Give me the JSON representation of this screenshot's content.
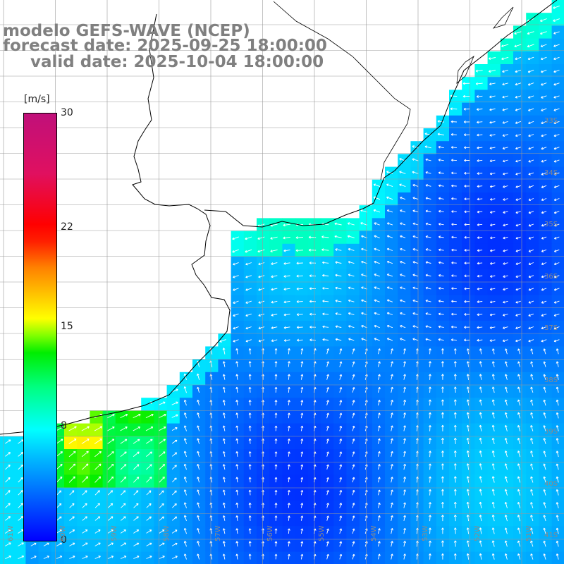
{
  "title": {
    "line1": "modelo GEFS-WAVE (NCEP)",
    "line2": "forecast date: 2025-09-25 18:00:00",
    "line3": "valid date: 2025-10-04 18:00:00"
  },
  "colorbar": {
    "units": "[m/s]",
    "ticks": [
      {
        "label": "30",
        "value": 30
      },
      {
        "label": "22",
        "value": 22
      },
      {
        "label": "15",
        "value": 15
      },
      {
        "label": "8",
        "value": 8
      },
      {
        "label": "0",
        "value": 0
      }
    ],
    "min": 0,
    "max": 30
  },
  "lat_labels": [
    "33S",
    "34S",
    "35S",
    "36S",
    "37S",
    "38S",
    "39S",
    "40S",
    "41S"
  ],
  "lon_labels": [
    "61W",
    "60W",
    "59W",
    "58W",
    "57W",
    "56W",
    "55W",
    "54W",
    "53W",
    "52W",
    "51W"
  ],
  "map": {
    "variable": "wind speed",
    "arrow_color": "#ffffff",
    "coast_color": "#000000",
    "grid_color": "#9a9a9a"
  }
}
